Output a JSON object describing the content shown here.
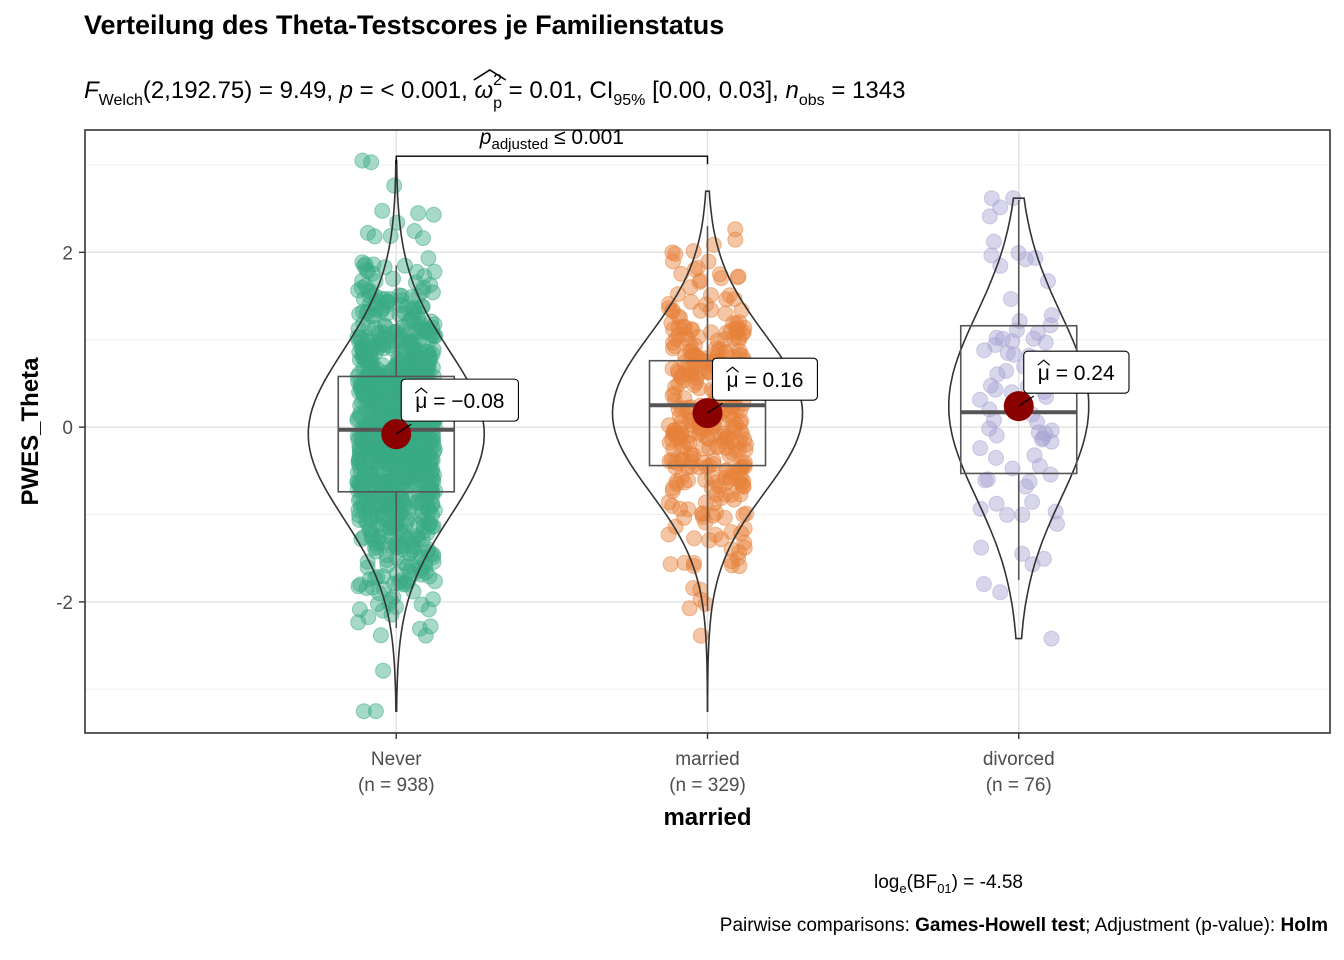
{
  "chart_data": {
    "type": "violin",
    "title": "Verteilung des Theta-Testscores je Familienstatus",
    "subtitle": {
      "f_symbol": "F",
      "f_subscript": "Welch",
      "f_value": "(2,192.75) = 9.49, ",
      "p_symbol": "p",
      "p_value": " = < 0.001, ",
      "omega_symbol": "ω",
      "omega_sup": "2",
      "omega_sub": "p",
      "omega_value": " = 0.01, CI",
      "ci_sub": "95%",
      "ci_value": " [0.00, 0.03], ",
      "n_symbol": "n",
      "n_sub": "obs",
      "n_value": " = 1343"
    },
    "xlabel": "married",
    "ylabel": "PWES_Theta",
    "ylim": [
      -3.5,
      3.4
    ],
    "y_ticks": [
      "-2",
      "0",
      "2"
    ],
    "y_tick_values": [
      -2,
      0,
      2
    ],
    "grid": true,
    "categories": [
      "Never",
      "married",
      "divorced"
    ],
    "counts": [
      "(n = 938)",
      "(n = 329)",
      "(n = 76)"
    ],
    "n_values": [
      938,
      329,
      76
    ],
    "colors": [
      "#3aaa86",
      "#e6813a",
      "#a8a3d2"
    ],
    "mean_color": "#8b0000",
    "means": [
      -0.08,
      0.16,
      0.24
    ],
    "mean_labels": [
      "−0.08",
      "0.16",
      "0.24"
    ],
    "mean_symbol": "μ",
    "mean_label_sep": " = ",
    "boxes": [
      {
        "q1": -0.74,
        "median": -0.03,
        "q3": 0.58,
        "whisker_low": -2.3,
        "whisker_high": 1.85
      },
      {
        "q1": -0.44,
        "median": 0.25,
        "q3": 0.76,
        "whisker_low": -2.1,
        "whisker_high": 2.3
      },
      {
        "q1": -0.53,
        "median": 0.17,
        "q3": 1.16,
        "whisker_low": -1.75,
        "whisker_high": 2.6
      }
    ],
    "violin_ranges": [
      [
        -3.25,
        3.05
      ],
      [
        -3.25,
        2.7
      ],
      [
        -2.42,
        2.62
      ]
    ],
    "comparison": {
      "from": "Never",
      "to": "married",
      "y": 3.1,
      "label_symbol": "p",
      "label_sub": "adjusted",
      "label_value": " ≤ 0.001"
    }
  },
  "footer": {
    "bayes_prefix": "log",
    "bayes_sub1": "e",
    "bayes_mid": "(BF",
    "bayes_sub2": "01",
    "bayes_value": ") = -4.58",
    "pairwise_prefix": "Pairwise comparisons: ",
    "pairwise_test": "Games-Howell test",
    "pairwise_mid": "; Adjustment (p-value): ",
    "pairwise_adjust": "Holm"
  }
}
